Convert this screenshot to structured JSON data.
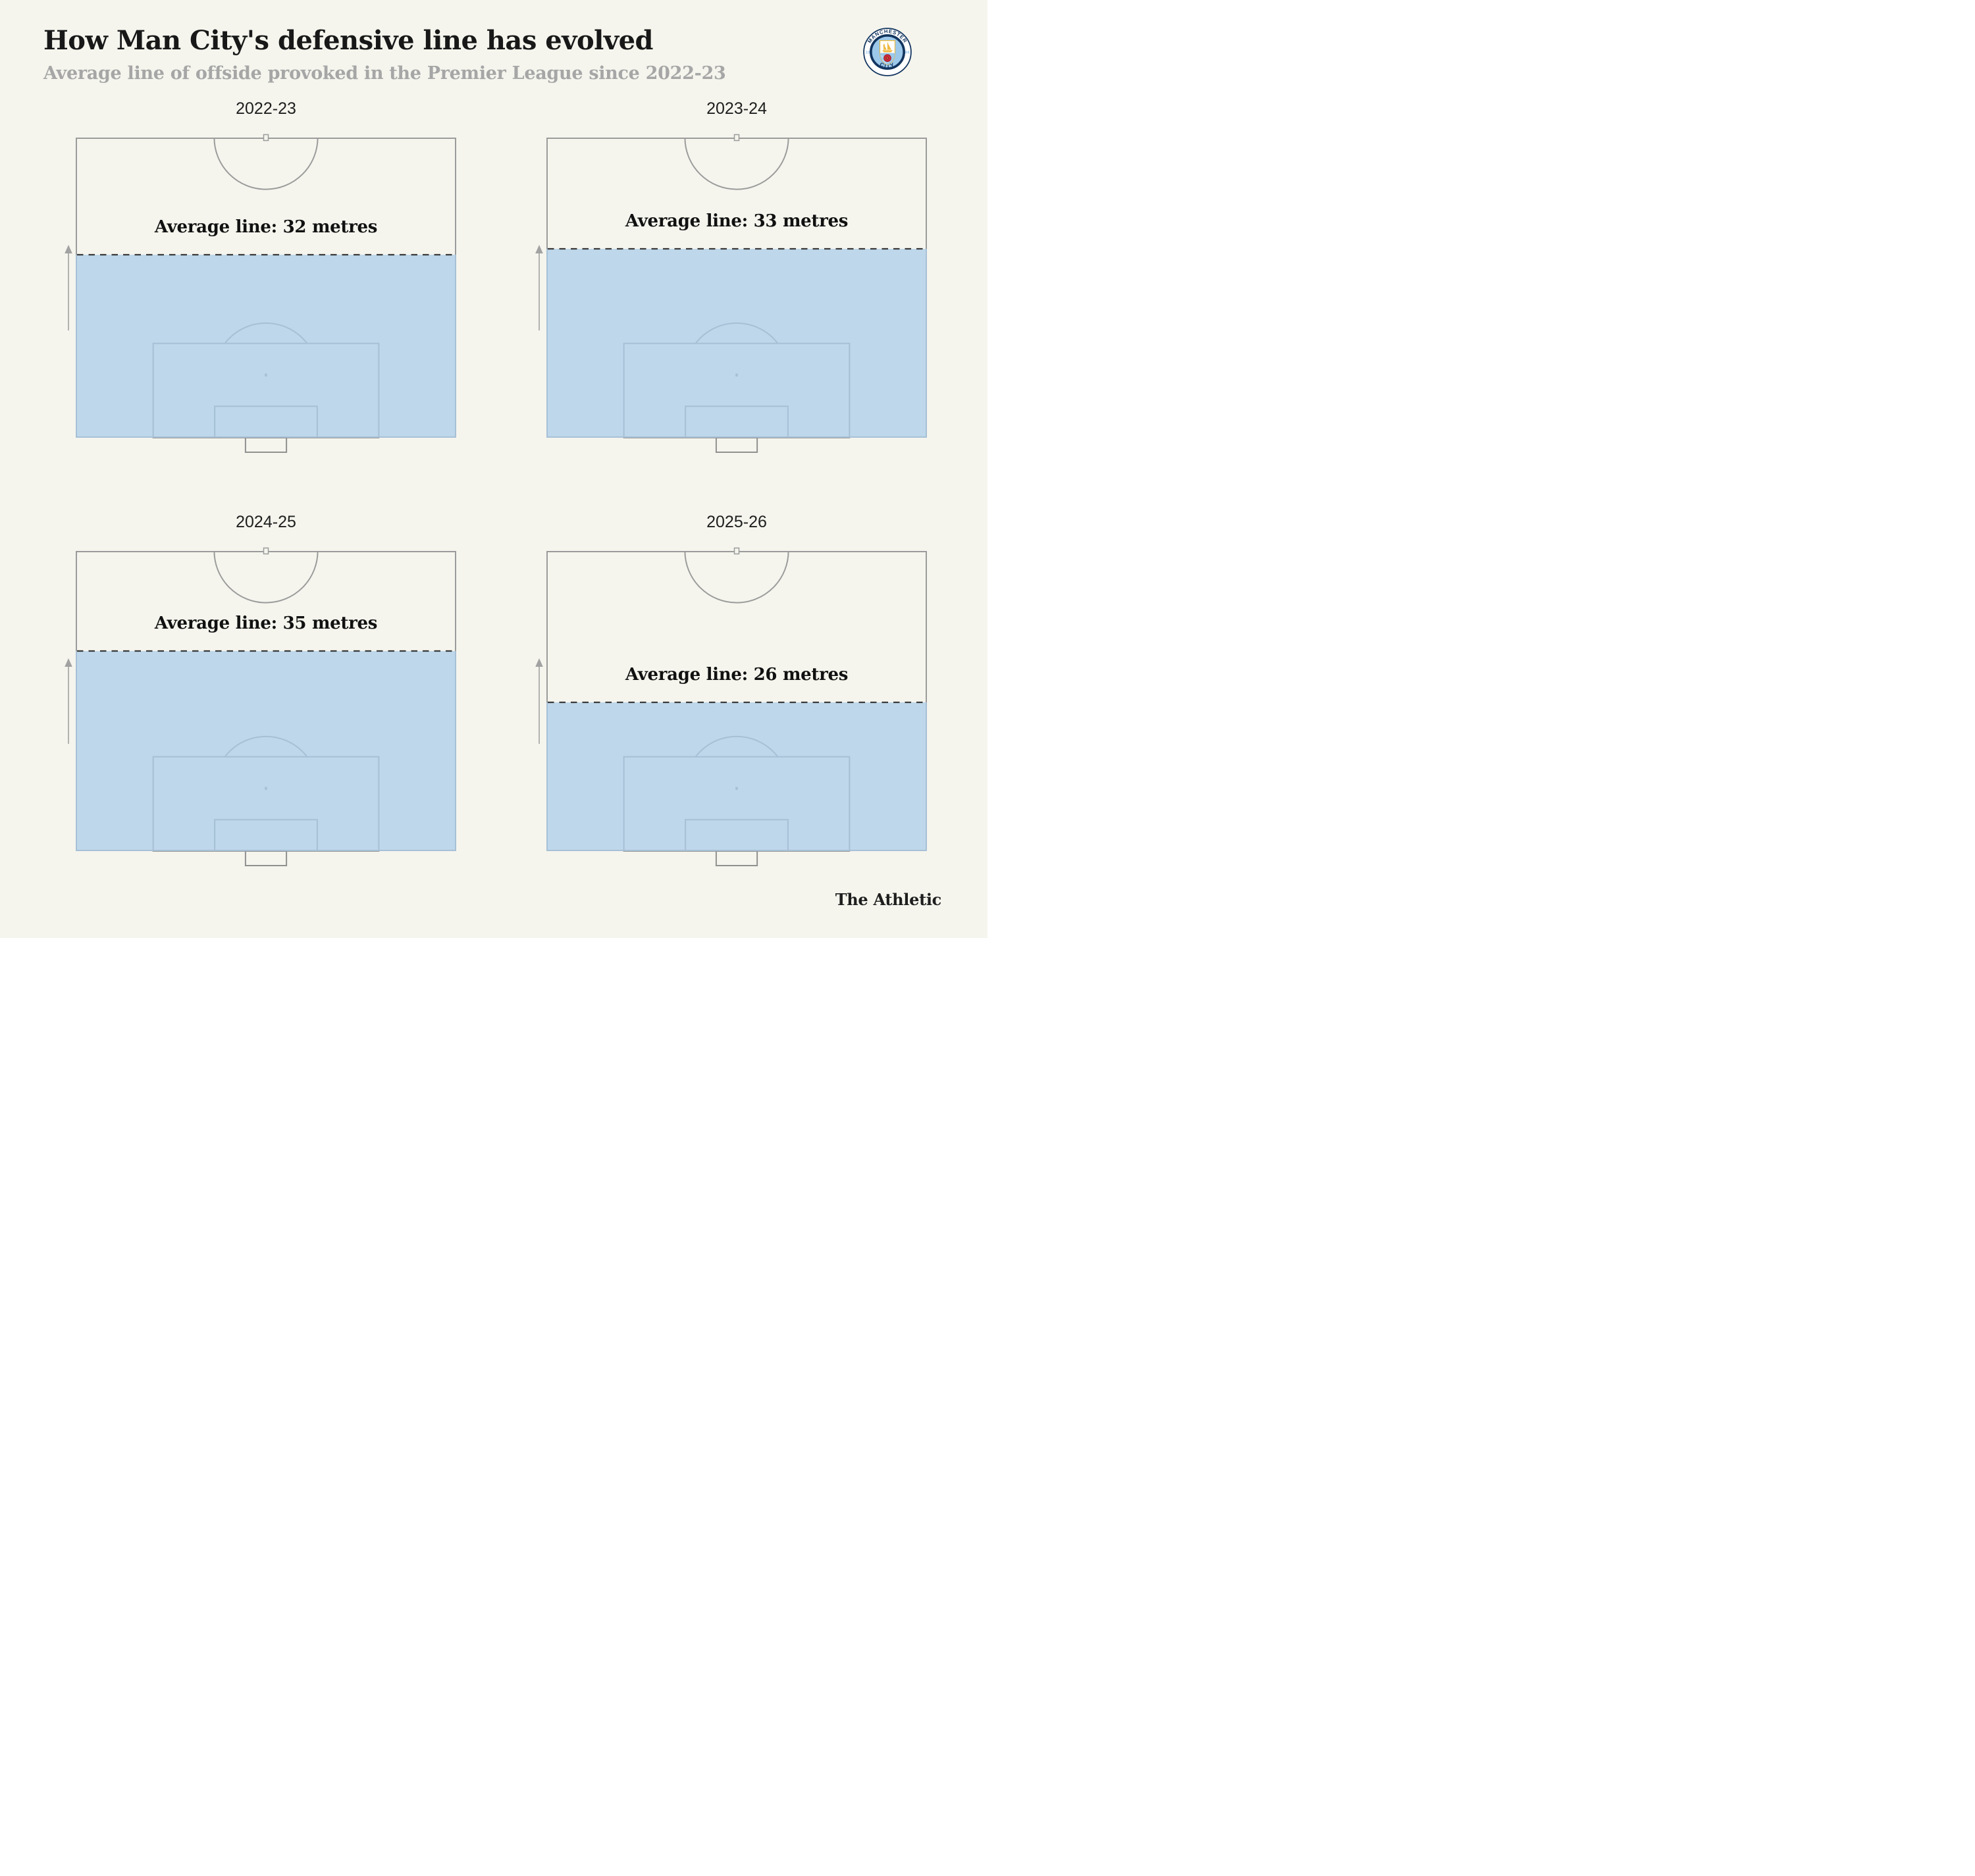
{
  "header": {
    "title": "How Man City's defensive line has evolved",
    "subtitle": "Average line of offside provoked in the Premier League since 2022-23"
  },
  "badge": {
    "club": "Manchester City crest",
    "ring_top": "MANCHESTER",
    "ring_bottom": "CITY",
    "year_left": "18",
    "year_right": "94"
  },
  "footer": {
    "brand": "The Athletic"
  },
  "colors": {
    "background": "#f5f5ee",
    "pitch_line": "#9b9b9b",
    "goal_line": "#909090",
    "shaded_blue": "#abcce8",
    "shaded_blue_displayed": "#bed7ea",
    "dashed_line": "#3a3a3a",
    "arrow": "#a2a2a2",
    "navy": "#12355f",
    "sky": "#9cc8ea",
    "gold": "#f0b93f",
    "rose_red": "#cc2e3a"
  },
  "chart_data": {
    "type": "pitch-small-multiples",
    "title": "How Man City's defensive line has evolved",
    "subtitle": "Average line of offside provoked in the Premier League since 2022-23",
    "unit": "metres from own goal line",
    "pitch": "half pitch, halfway line at top, goal line at bottom, 52.5 m deep x 68 m wide",
    "legend_position": "none",
    "panels": [
      {
        "season": "2022-23",
        "average_line_metres": 32,
        "label": "Average line: 32 metres"
      },
      {
        "season": "2023-24",
        "average_line_metres": 33,
        "label": "Average line: 33 metres"
      },
      {
        "season": "2024-25",
        "average_line_metres": 35,
        "label": "Average line: 35 metres"
      },
      {
        "season": "2025-26",
        "average_line_metres": 26,
        "label": "Average line: 26 metres"
      }
    ],
    "annotations": "upward arrow left of each pitch indicating direction of play; blue shading from goal line up to the average offside line"
  }
}
